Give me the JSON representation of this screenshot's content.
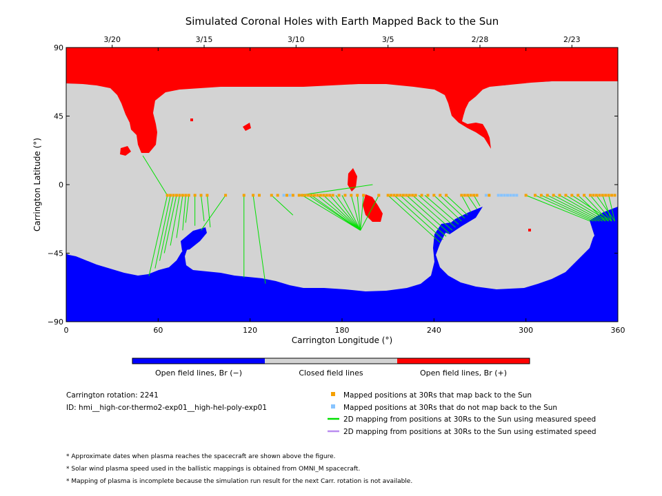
{
  "chart_data": {
    "type": "map",
    "title": "Simulated Coronal Holes with Earth Mapped Back to the Sun",
    "xlabel": "Carrington Longitude (°)",
    "ylabel": "Carrington Latitude (°)",
    "xlim": [
      0,
      360
    ],
    "ylim": [
      -90,
      90
    ],
    "x_ticks": [
      "0",
      "60",
      "120",
      "180",
      "240",
      "300",
      "360"
    ],
    "y_ticks": [
      "90",
      "45",
      "0",
      "−45",
      "−90"
    ],
    "x_tick_values": [
      0,
      60,
      120,
      180,
      240,
      300,
      360
    ],
    "y_tick_values": [
      90,
      45,
      0,
      -45,
      -90
    ],
    "top_dates": [
      {
        "label": "3/20",
        "lon": 30
      },
      {
        "label": "3/15",
        "lon": 90
      },
      {
        "label": "3/10",
        "lon": 150
      },
      {
        "label": "3/5",
        "lon": 210
      },
      {
        "label": "2/28",
        "lon": 270
      },
      {
        "label": "2/23",
        "lon": 330
      }
    ],
    "colorbar": [
      {
        "label": "Open field lines, Br (−)",
        "color": "#0000ff"
      },
      {
        "label": "Closed field lines",
        "color": "#d3d3d3"
      },
      {
        "label": "Open field lines, Br (+)",
        "color": "#ff0000"
      }
    ],
    "mapped_latitude": -7,
    "mapped_positions_lon": [
      66,
      68,
      70,
      72,
      74,
      76,
      78,
      80,
      84,
      88,
      92,
      104,
      116,
      122,
      126,
      134,
      138,
      144,
      148,
      152,
      154,
      156,
      158,
      160,
      162,
      164,
      166,
      168,
      170,
      172,
      174,
      178,
      182,
      186,
      190,
      194,
      204,
      210,
      212,
      214,
      216,
      218,
      220,
      222,
      224,
      226,
      228,
      232,
      236,
      240,
      244,
      248,
      258,
      260,
      262,
      264,
      266,
      268,
      276,
      300,
      306,
      310,
      314,
      318,
      322,
      326,
      330,
      334,
      338,
      342,
      344,
      346,
      348,
      350,
      352,
      354,
      356,
      358
    ],
    "unmapped_positions_lon": [
      142,
      146,
      274,
      282,
      284,
      286,
      288,
      290,
      292,
      294
    ],
    "mapping_lines": [
      [
        66,
        50,
        19
      ],
      [
        66,
        54,
        -60
      ],
      [
        68,
        58,
        -55
      ],
      [
        70,
        61,
        -50
      ],
      [
        72,
        64,
        -45
      ],
      [
        74,
        68,
        -40
      ],
      [
        76,
        72,
        -35
      ],
      [
        78,
        76,
        -30
      ],
      [
        80,
        78,
        -25
      ],
      [
        84,
        84,
        -27
      ],
      [
        88,
        90,
        -24
      ],
      [
        92,
        94,
        -28
      ],
      [
        104,
        88,
        -30
      ],
      [
        116,
        116,
        -61
      ],
      [
        122,
        130,
        -65
      ],
      [
        134,
        148,
        -20
      ],
      [
        152,
        200,
        0
      ],
      [
        154,
        192,
        -30
      ],
      [
        158,
        192,
        -30
      ],
      [
        160,
        192,
        -30
      ],
      [
        164,
        192,
        -30
      ],
      [
        168,
        192,
        -30
      ],
      [
        172,
        192,
        -30
      ],
      [
        176,
        192,
        -30
      ],
      [
        180,
        192,
        -30
      ],
      [
        186,
        192,
        -30
      ],
      [
        190,
        192,
        -30
      ],
      [
        194,
        192,
        -30
      ],
      [
        204,
        192,
        -30
      ],
      [
        210,
        244,
        -38
      ],
      [
        214,
        246,
        -36
      ],
      [
        218,
        248,
        -34
      ],
      [
        222,
        250,
        -32
      ],
      [
        226,
        252,
        -30
      ],
      [
        230,
        254,
        -28
      ],
      [
        234,
        256,
        -26
      ],
      [
        240,
        258,
        -24
      ],
      [
        244,
        260,
        -22
      ],
      [
        248,
        262,
        -20
      ],
      [
        258,
        264,
        -18
      ],
      [
        262,
        268,
        -16
      ],
      [
        266,
        270,
        -14
      ],
      [
        300,
        342,
        -24
      ],
      [
        306,
        344,
        -24
      ],
      [
        310,
        346,
        -24
      ],
      [
        314,
        348,
        -24
      ],
      [
        318,
        350,
        -24
      ],
      [
        322,
        352,
        -24
      ],
      [
        326,
        354,
        -24
      ],
      [
        330,
        356,
        -24
      ],
      [
        334,
        352,
        -24
      ],
      [
        338,
        354,
        -24
      ],
      [
        342,
        356,
        -24
      ],
      [
        346,
        358,
        -24
      ],
      [
        350,
        356,
        -24
      ],
      [
        354,
        358,
        -24
      ]
    ]
  },
  "info": {
    "carrington_rotation": "Carrington rotation: 2241",
    "model_id": "ID: hmi__high-cor-thermo2-exp01__high-hel-poly-exp01"
  },
  "legend": {
    "mapped": {
      "label": "Mapped positions at 30Rs that map back to the Sun",
      "color": "#f5a000"
    },
    "unmapped": {
      "label": "Mapped positions at 30Rs that do not map back to the Sun",
      "color": "#87c4ff"
    },
    "measured": {
      "label": "2D mapping from positions at 30Rs to the Sun using measured speed",
      "color": "#00e000"
    },
    "estimated": {
      "label": "2D mapping from positions at 30Rs to the Sun using estimated speed",
      "color": "#b98cf0"
    }
  },
  "notes": [
    "* Approximate dates when plasma reaches the spacecraft are shown above the figure.",
    "* Solar wind plasma speed used in the ballistic mappings is obtained from OMNI_M spacecraft.",
    "* Mapping of plasma is incomplete because the simulation run result for the next Carr. rotation is not available."
  ]
}
